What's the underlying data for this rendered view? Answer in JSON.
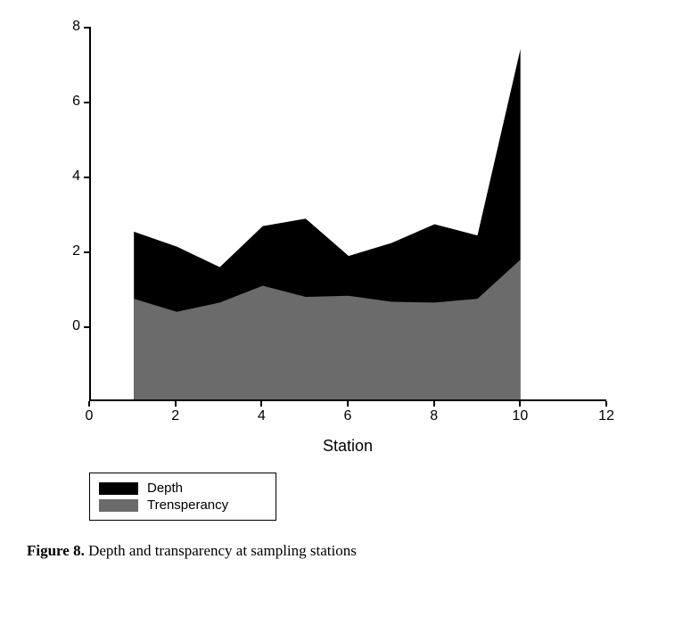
{
  "chart": {
    "type": "area",
    "xlabel": "Station",
    "xlim": [
      0,
      12
    ],
    "ylim": [
      -2,
      8
    ],
    "xtick_step": 2,
    "ytick_step": 2,
    "xticks": [
      0,
      2,
      4,
      6,
      8,
      10,
      12
    ],
    "yticks": [
      0,
      2,
      4,
      6,
      8
    ],
    "x_values": [
      1,
      2,
      3,
      4,
      5,
      6,
      7,
      8,
      9,
      10
    ],
    "series": [
      {
        "name": "Depth",
        "color": "#000000",
        "values": [
          2.5,
          2.1,
          1.55,
          2.65,
          2.85,
          1.85,
          2.2,
          2.7,
          2.4,
          7.4
        ]
      },
      {
        "name": "Trensperancy",
        "color": "#6b6b6b",
        "values": [
          0.7,
          0.35,
          0.6,
          1.05,
          0.75,
          0.78,
          0.62,
          0.6,
          0.7,
          1.75
        ]
      }
    ],
    "baseline": -2,
    "background_color": "#ffffff",
    "axis_color": "#000000",
    "tick_fontsize": 16,
    "axis_label_fontsize": 18
  },
  "legend": {
    "items": [
      {
        "label": "Depth",
        "color": "#000000"
      },
      {
        "label": "Trensperancy",
        "color": "#6b6b6b"
      }
    ]
  },
  "caption": {
    "label": "Figure 8.",
    "text": "Depth and transparency at sampling stations"
  }
}
